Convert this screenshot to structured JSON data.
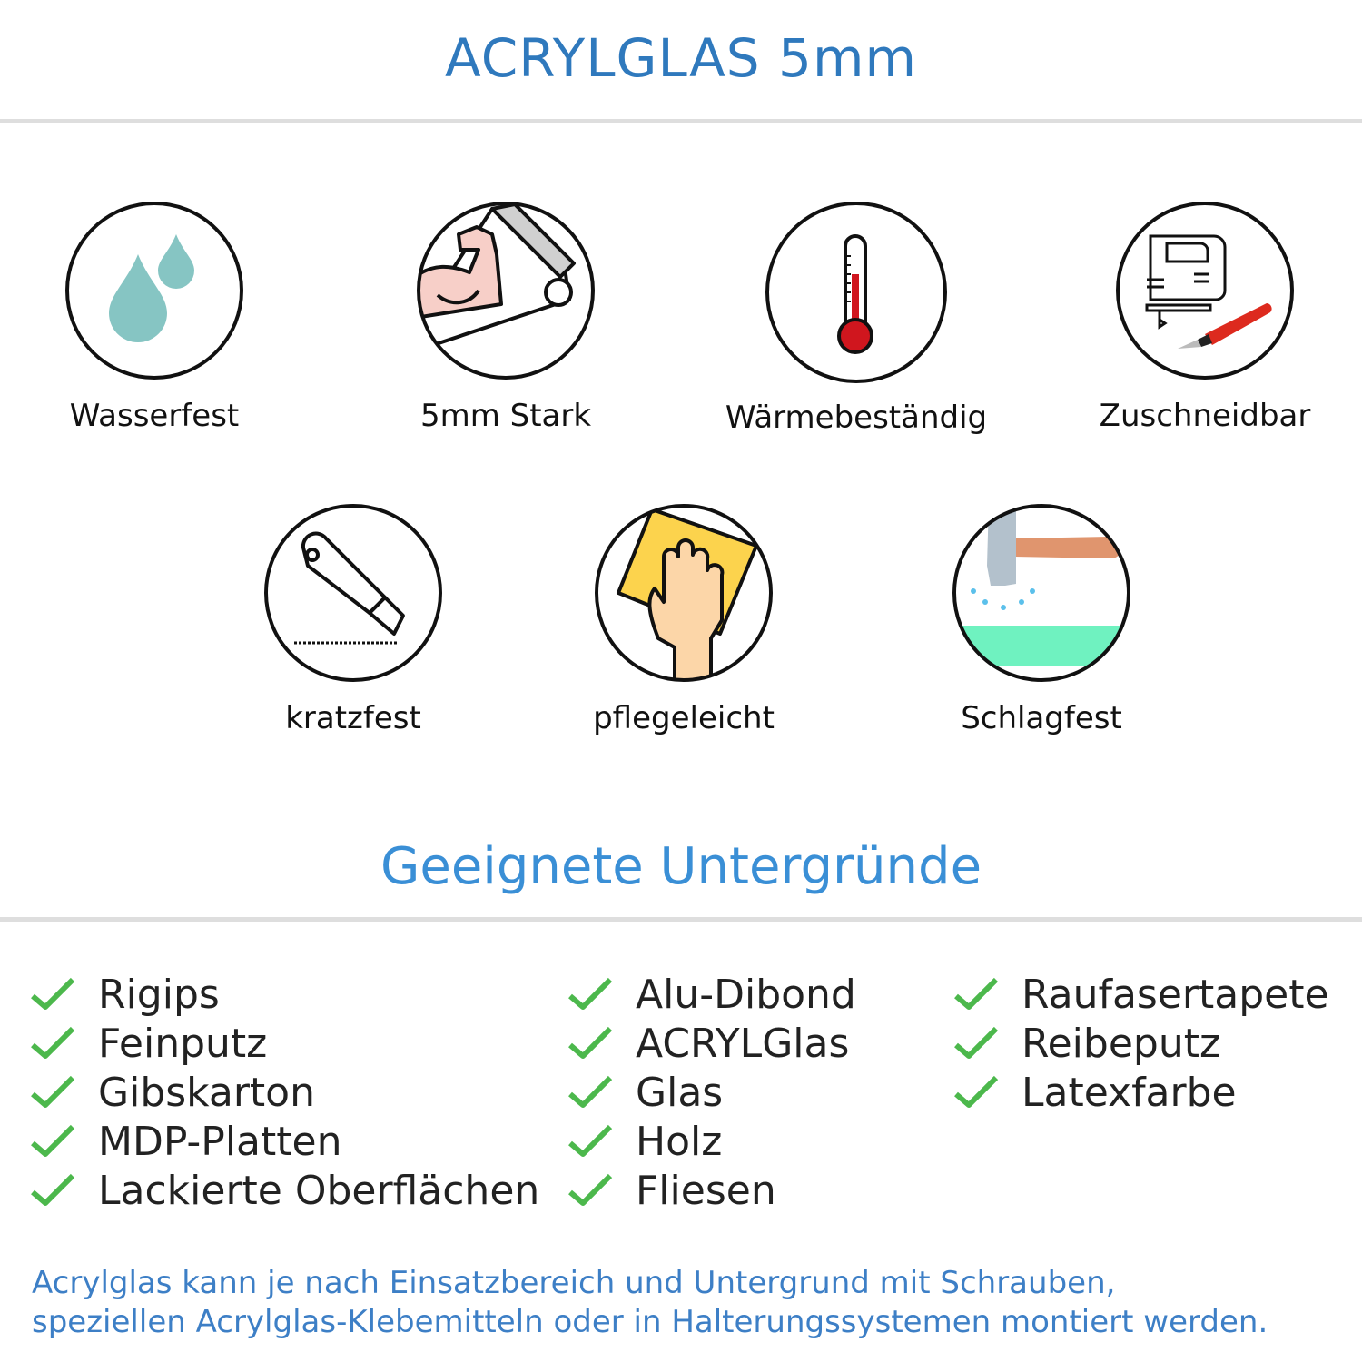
{
  "header": {
    "title": "ACRYLGLAS 5mm"
  },
  "features": [
    {
      "label": "Wasserfest",
      "icon": "water-drops-icon"
    },
    {
      "label": "5mm Stark",
      "icon": "strong-arm-icon"
    },
    {
      "label": "Wärmebeständig",
      "icon": "thermometer-icon"
    },
    {
      "label": "Zuschneidbar",
      "icon": "jigsaw-cutter-icon"
    },
    {
      "label": "kratzfest",
      "icon": "box-cutter-icon"
    },
    {
      "label": "pflegeleicht",
      "icon": "cleaning-cloth-hand-icon"
    },
    {
      "label": "Schlagfest",
      "icon": "hammer-impact-icon"
    }
  ],
  "surfaces": {
    "title": "Geeignete Untergründe",
    "check_color": "#4cb84c",
    "columns": [
      [
        "Rigips",
        "Feinputz",
        "Gibskarton",
        "MDP-Platten",
        "Lackierte Oberflächen"
      ],
      [
        "Alu-Dibond",
        "ACRYLGlas",
        "Glas",
        "Holz",
        "Fliesen"
      ],
      [
        "Raufasertapete",
        "Reibeputz",
        "Latexfarbe"
      ]
    ]
  },
  "note": {
    "line1": "Acrylglas kann je nach Einsatzbereich und Untergrund mit Schrauben,",
    "line2": "speziellen Acrylglas-Klebemitteln oder in Halterungssystemen montiert werden."
  },
  "colors": {
    "title": "#2f79bd",
    "subtitle": "#3a8fd6",
    "note": "#3d7fc6",
    "divider": "#dedede"
  }
}
